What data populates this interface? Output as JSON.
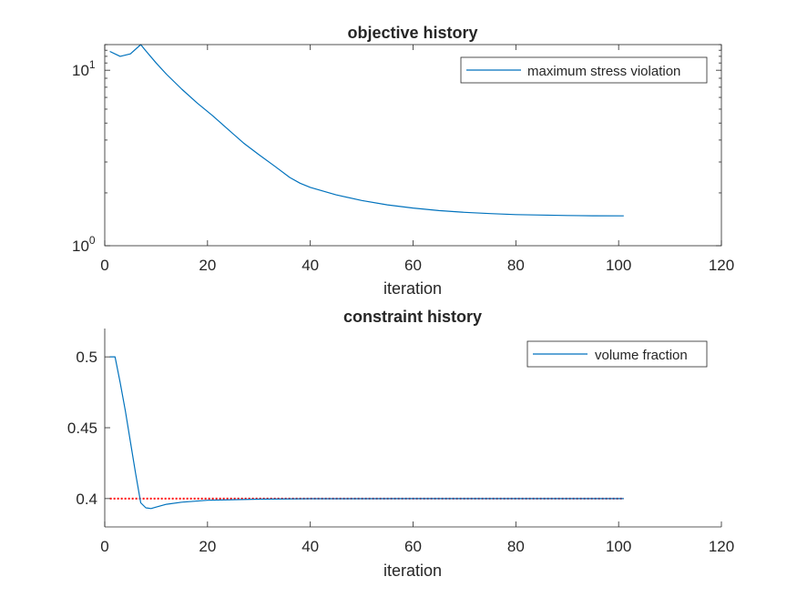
{
  "chart_data": [
    {
      "type": "line",
      "title": "objective history",
      "xlabel": "iteration",
      "ylabel": "",
      "xlim": [
        0,
        120
      ],
      "ylim": [
        1,
        14
      ],
      "yscale": "log",
      "xticks": [
        "0",
        "20",
        "40",
        "60",
        "80",
        "100",
        "120"
      ],
      "yticks": [
        {
          "value": 1,
          "base": "10",
          "exp": "0"
        },
        {
          "value": 10,
          "base": "10",
          "exp": "1"
        }
      ],
      "legend_position": "top-right",
      "box": true,
      "series": [
        {
          "name": "maximum stress violation",
          "color": "#0072BD",
          "x": [
            1,
            3,
            5,
            7,
            8,
            10,
            12,
            15,
            18,
            21,
            24,
            27,
            30,
            33,
            36,
            38,
            40,
            45,
            50,
            55,
            60,
            65,
            70,
            75,
            80,
            85,
            90,
            95,
            101
          ],
          "y": [
            12.8,
            12.0,
            12.4,
            14.0,
            12.9,
            11.0,
            9.5,
            7.8,
            6.5,
            5.5,
            4.6,
            3.85,
            3.3,
            2.85,
            2.45,
            2.27,
            2.15,
            1.95,
            1.81,
            1.71,
            1.64,
            1.585,
            1.55,
            1.525,
            1.505,
            1.495,
            1.487,
            1.482,
            1.48
          ]
        }
      ]
    },
    {
      "type": "line",
      "title": "constraint history",
      "xlabel": "iteration",
      "ylabel": "",
      "xlim": [
        0,
        120
      ],
      "ylim": [
        0.38,
        0.52
      ],
      "xticks": [
        "0",
        "20",
        "40",
        "60",
        "80",
        "100",
        "120"
      ],
      "yticks": [
        "0.4",
        "0.45",
        "0.5"
      ],
      "legend_position": "top-right",
      "box": false,
      "series": [
        {
          "name": "volume fraction",
          "color": "#0072BD",
          "x": [
            1,
            2,
            3,
            4,
            5,
            6,
            7,
            8,
            9,
            10,
            12,
            15,
            20,
            30,
            40,
            60,
            80,
            101
          ],
          "y": [
            0.5,
            0.5,
            0.482,
            0.462,
            0.44,
            0.418,
            0.397,
            0.3935,
            0.393,
            0.394,
            0.396,
            0.3975,
            0.3988,
            0.3996,
            0.3999,
            0.4,
            0.4,
            0.4
          ]
        }
      ],
      "reference_line": {
        "color": "#FF0000",
        "dash": "dotted",
        "x": [
          1,
          101
        ],
        "y": [
          0.4,
          0.4
        ]
      }
    }
  ]
}
